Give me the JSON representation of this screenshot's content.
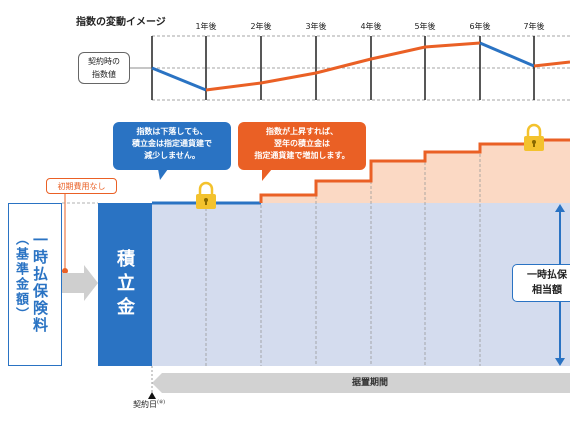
{
  "caption": "指数の変動イメージ",
  "years": [
    "1年後",
    "2年後",
    "3年後",
    "4年後",
    "5年後",
    "6年後",
    "7年後"
  ],
  "index_label": [
    "契約時の",
    "指数値"
  ],
  "bubble_down": [
    "指数は下落しても、",
    "積立金は指定通貨建で",
    "減少しません。"
  ],
  "bubble_up": [
    "指数が上昇すれば、",
    "翌年の積立金は",
    "指定通貨建で増加します。"
  ],
  "no_fee_label": "初期費用なし",
  "lump_sum_premium": "一時払保険料",
  "base_amount": "（基準金額）",
  "accumulation": "積立金",
  "equivalent_label": [
    "一時払保",
    "相当額"
  ],
  "deferral_period": "据置期間",
  "contract_date": "契約日",
  "contract_note": "(※)",
  "colors": {
    "blue": "#2a73c3",
    "orange": "#ea6025",
    "lightblue": "#d4dcee",
    "lightorange": "#fbd9c4",
    "gray": "#cfcfcf",
    "lock": "#f3c22d"
  },
  "chart_data": {
    "type": "line",
    "x": [
      "契約時",
      "1年後",
      "2年後",
      "3年後",
      "4年後",
      "5年後",
      "6年後",
      "7年後"
    ],
    "series": [
      {
        "values": [
          0,
          -23,
          -15,
          -5,
          9,
          22,
          26,
          2
        ]
      }
    ]
  }
}
